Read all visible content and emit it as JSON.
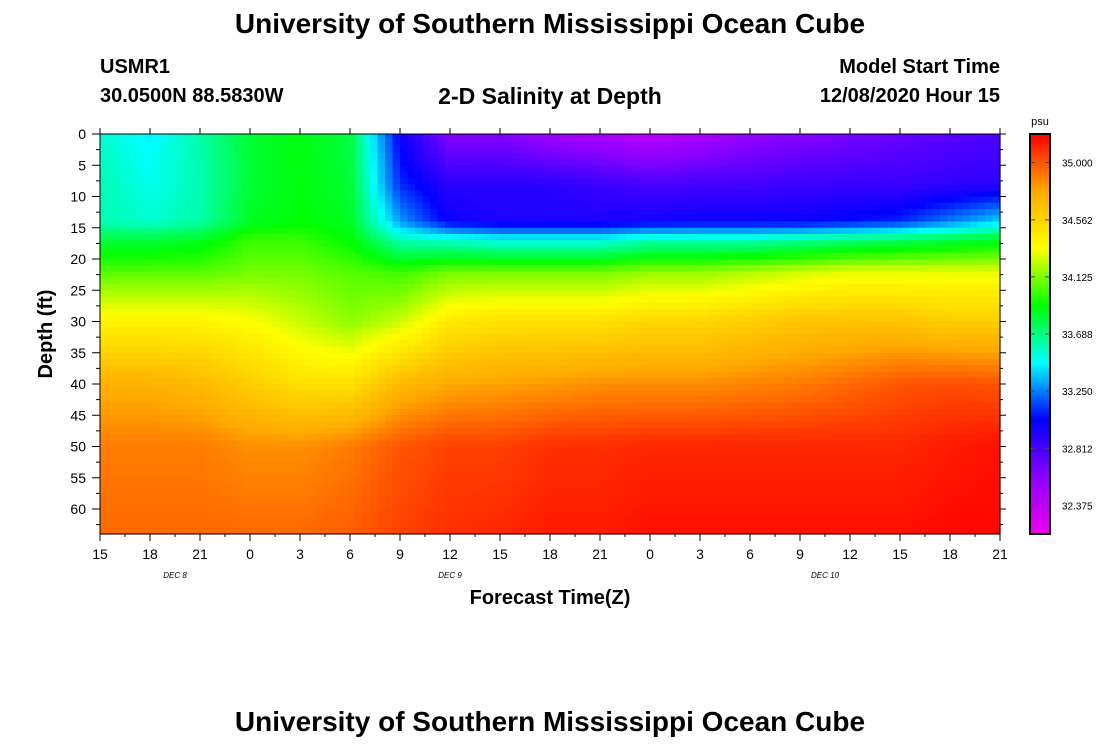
{
  "header": {
    "title": "University of Southern Mississippi Ocean Cube",
    "station_id": "USMR1",
    "coordinates": "30.0500N 88.5830W",
    "plot_title": "2-D Salinity at Depth",
    "model_start_label": "Model Start Time",
    "model_start_value": "12/08/2020 Hour 15"
  },
  "footer": {
    "title": "University of Southern Mississippi Ocean Cube"
  },
  "colors": {
    "background": "#ffffff",
    "axis": "#000000",
    "colormap": [
      "#ee00ee",
      "#8a00ff",
      "#0000ff",
      "#00ffff",
      "#00ff00",
      "#ffff00",
      "#ffaa00",
      "#ff0000"
    ]
  },
  "chart_data": {
    "type": "heatmap",
    "title": "2-D Salinity at Depth",
    "xlabel": "Forecast Time(Z)",
    "ylabel": "Depth (ft)",
    "x_hours_since_start": {
      "min": 0,
      "max": 54
    },
    "x_tick_labels": [
      "15",
      "18",
      "21",
      "0",
      "3",
      "6",
      "9",
      "12",
      "15",
      "18",
      "21",
      "0",
      "3",
      "6",
      "9",
      "12",
      "15",
      "18",
      "21"
    ],
    "date_labels": [
      {
        "text": "DEC 8",
        "at_hour": 4.5
      },
      {
        "text": "DEC 9",
        "at_hour": 21
      },
      {
        "text": "DEC 10",
        "at_hour": 43.5
      }
    ],
    "y_range": [
      0,
      64
    ],
    "y_ticks": [
      0,
      5,
      10,
      15,
      20,
      25,
      30,
      35,
      40,
      45,
      50,
      55,
      60
    ],
    "colorbar": {
      "unit": "psu",
      "range": [
        32.156,
        35.219
      ],
      "tick_values": [
        32.375,
        32.812,
        33.25,
        33.688,
        34.125,
        34.562,
        35.0
      ],
      "tick_labels": [
        "32.375",
        "32.812",
        "33.250",
        "33.688",
        "34.125",
        "34.562",
        "35.000"
      ]
    },
    "grid": {
      "hours": [
        0,
        3,
        6,
        9,
        12,
        15,
        18,
        21,
        24,
        27,
        30,
        33,
        36,
        39,
        42,
        45,
        48,
        51,
        54
      ],
      "depths": [
        0,
        8,
        14,
        17,
        22,
        30,
        40,
        50,
        64
      ],
      "salinity": [
        [
          33.55,
          33.45,
          33.62,
          33.82,
          33.88,
          33.8,
          33.0,
          32.6,
          32.62,
          32.5,
          32.45,
          32.38,
          32.45,
          32.55,
          32.6,
          32.65,
          32.7,
          32.75,
          32.78
        ],
        [
          33.6,
          33.5,
          33.6,
          33.82,
          33.88,
          33.82,
          33.1,
          32.9,
          32.9,
          32.9,
          32.85,
          32.8,
          32.82,
          32.82,
          32.85,
          32.85,
          32.85,
          32.88,
          32.9
        ],
        [
          33.6,
          33.55,
          33.62,
          33.85,
          33.9,
          33.85,
          33.3,
          33.0,
          32.95,
          32.95,
          32.95,
          32.98,
          33.0,
          33.0,
          33.0,
          33.05,
          33.1,
          33.25,
          33.4
        ],
        [
          33.8,
          33.8,
          33.85,
          34.0,
          34.0,
          33.9,
          33.6,
          33.55,
          33.5,
          33.5,
          33.5,
          33.6,
          33.6,
          33.6,
          33.65,
          33.7,
          33.75,
          33.8,
          33.85
        ],
        [
          34.05,
          34.05,
          34.05,
          34.1,
          34.1,
          34.05,
          34.0,
          34.1,
          34.1,
          34.1,
          34.1,
          34.15,
          34.15,
          34.2,
          34.25,
          34.3,
          34.3,
          34.3,
          34.3
        ],
        [
          34.4,
          34.4,
          34.4,
          34.35,
          34.25,
          34.15,
          34.25,
          34.45,
          34.5,
          34.5,
          34.5,
          34.55,
          34.55,
          34.6,
          34.65,
          34.65,
          34.65,
          34.6,
          34.6
        ],
        [
          34.75,
          34.75,
          34.7,
          34.6,
          34.5,
          34.5,
          34.7,
          34.78,
          34.8,
          34.82,
          34.85,
          34.85,
          34.85,
          34.88,
          34.9,
          34.95,
          35.0,
          35.02,
          35.0
        ],
        [
          34.9,
          34.9,
          34.9,
          34.85,
          34.85,
          34.9,
          35.0,
          35.05,
          35.05,
          35.1,
          35.1,
          35.12,
          35.12,
          35.12,
          35.12,
          35.12,
          35.12,
          35.15,
          35.18
        ],
        [
          34.95,
          34.95,
          34.95,
          34.95,
          34.95,
          34.98,
          35.05,
          35.1,
          35.12,
          35.15,
          35.15,
          35.18,
          35.18,
          35.18,
          35.18,
          35.18,
          35.18,
          35.2,
          35.2
        ]
      ]
    }
  }
}
